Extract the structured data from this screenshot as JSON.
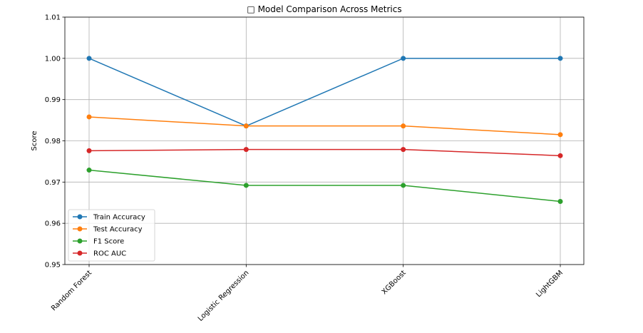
{
  "chart_data": {
    "type": "line",
    "title": "□ Model Comparison Across Metrics",
    "xlabel": "",
    "ylabel": "Score",
    "categories": [
      "Random Forest",
      "Logistic Regression",
      "XGBoost",
      "LightGBM"
    ],
    "ylim": [
      0.95,
      1.01
    ],
    "yticks": [
      "0.95",
      "0.96",
      "0.97",
      "0.98",
      "0.99",
      "1.00",
      "1.01"
    ],
    "grid": true,
    "legend_position": "lower-left",
    "series": [
      {
        "name": "Train Accuracy",
        "color": "#1f77b4",
        "values": [
          1.0,
          0.9836,
          1.0,
          1.0
        ]
      },
      {
        "name": "Test Accuracy",
        "color": "#ff7f0e",
        "values": [
          0.9858,
          0.9836,
          0.9836,
          0.9815
        ]
      },
      {
        "name": "F1 Score",
        "color": "#2ca02c",
        "values": [
          0.9729,
          0.9692,
          0.9692,
          0.9653
        ]
      },
      {
        "name": "ROC AUC",
        "color": "#d62728",
        "values": [
          0.9776,
          0.9779,
          0.9779,
          0.9764
        ]
      }
    ]
  }
}
